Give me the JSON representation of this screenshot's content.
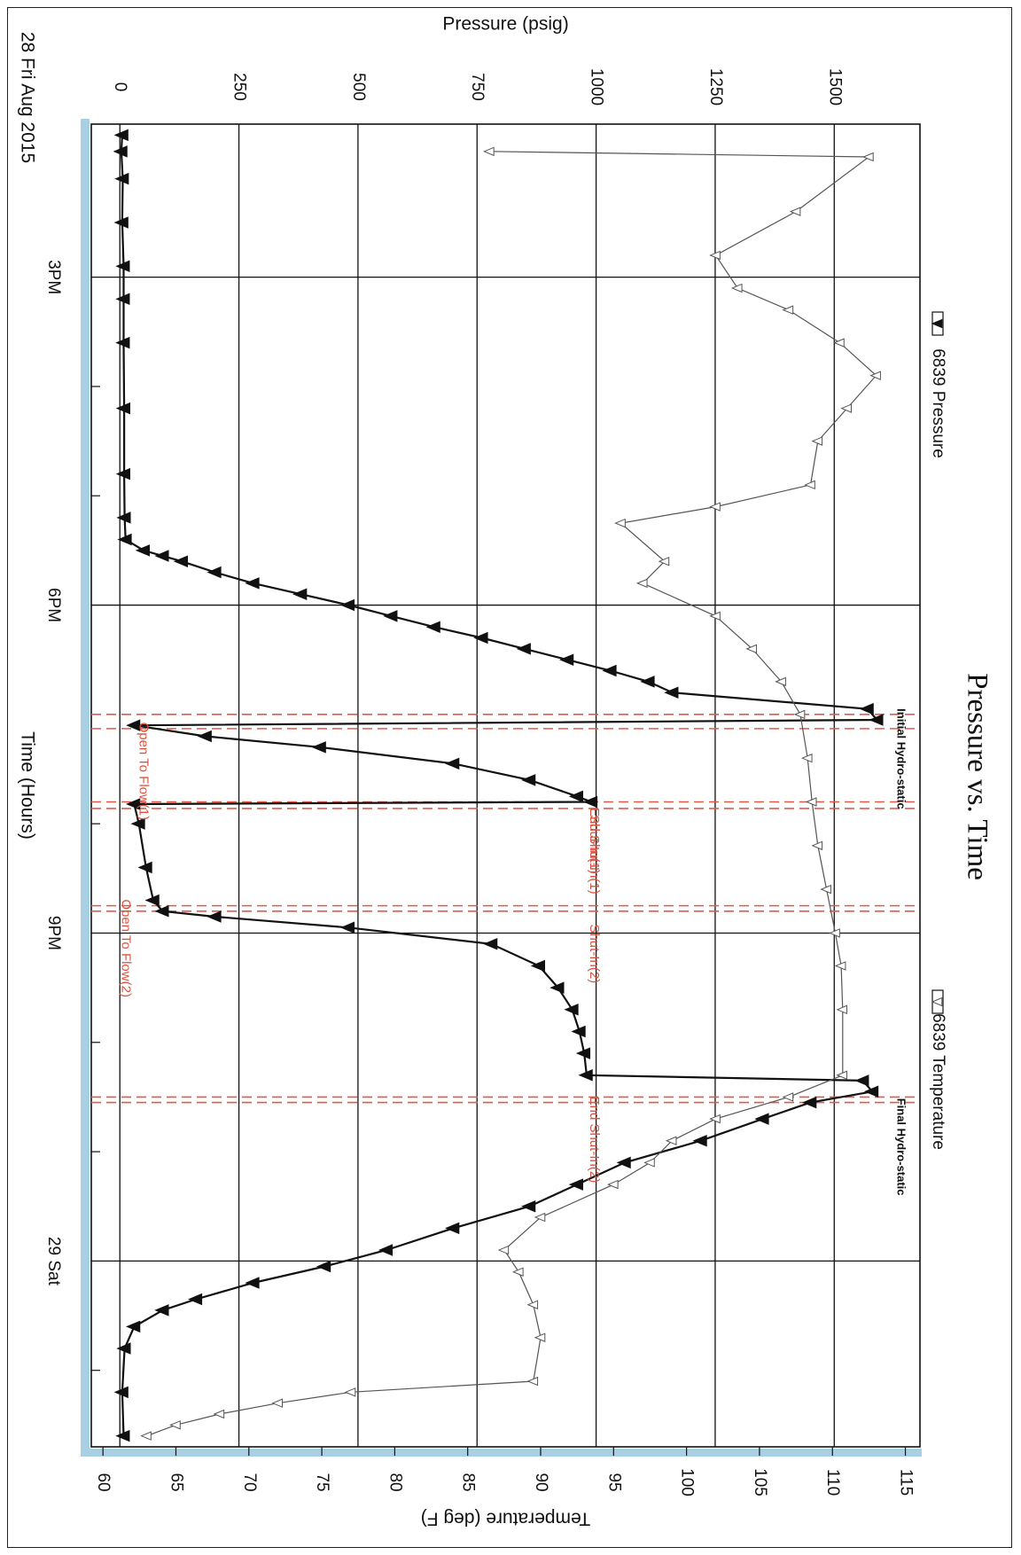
{
  "chart_data": {
    "type": "line",
    "title": "Pressure vs. Time",
    "date_label": "28 Fri Aug 2015",
    "xlabel": "Time (Hours)",
    "ylabel_left": "Pressure (psig)",
    "ylabel_right": "Temperature (deg F)",
    "x_units": "hours since 12PM 28 Aug 2015",
    "xlim": [
      1.6,
      13.7
    ],
    "x_ticks": [
      {
        "x": 3,
        "label": "3PM"
      },
      {
        "x": 6,
        "label": "6PM"
      },
      {
        "x": 9,
        "label": "9PM"
      },
      {
        "x": 12,
        "label": "29 Sat"
      }
    ],
    "x_minor_ticks": [
      4,
      5,
      7,
      8,
      10,
      11,
      13
    ],
    "pressure_axis": {
      "lim": [
        -60,
        1680
      ],
      "ticks": [
        0,
        250,
        500,
        750,
        1000,
        1250,
        1500
      ],
      "tick_labels": [
        "0",
        "250",
        "500",
        "750",
        "1000",
        "1250",
        "1500"
      ]
    },
    "temperature_axis": {
      "lim": [
        59.2,
        116.0
      ],
      "ticks": [
        60,
        65,
        70,
        75,
        80,
        85,
        90,
        95,
        100,
        105,
        110,
        115
      ],
      "tick_labels": [
        "60",
        "65",
        "70",
        "75",
        "80",
        "85",
        "90",
        "95",
        "100",
        "105",
        "110",
        "115"
      ]
    },
    "grid": true,
    "series": [
      {
        "name": "6839 Pressure",
        "marker": "filled-triangle",
        "color": "#111111",
        "points": [
          [
            1.7,
            5
          ],
          [
            1.85,
            3
          ],
          [
            2.1,
            6
          ],
          [
            2.5,
            5
          ],
          [
            2.9,
            8
          ],
          [
            3.2,
            8
          ],
          [
            3.6,
            8
          ],
          [
            4.2,
            9
          ],
          [
            4.8,
            9
          ],
          [
            5.2,
            10
          ],
          [
            5.4,
            12
          ],
          [
            5.5,
            50
          ],
          [
            5.55,
            90
          ],
          [
            5.6,
            130
          ],
          [
            5.7,
            200
          ],
          [
            5.8,
            280
          ],
          [
            5.9,
            380
          ],
          [
            6.0,
            480
          ],
          [
            6.1,
            570
          ],
          [
            6.2,
            660
          ],
          [
            6.3,
            760
          ],
          [
            6.4,
            850
          ],
          [
            6.5,
            940
          ],
          [
            6.6,
            1030
          ],
          [
            6.7,
            1110
          ],
          [
            6.8,
            1160
          ],
          [
            6.95,
            1570
          ],
          [
            7.05,
            1590
          ],
          [
            7.1,
            30
          ],
          [
            7.2,
            180
          ],
          [
            7.3,
            420
          ],
          [
            7.45,
            700
          ],
          [
            7.6,
            860
          ],
          [
            7.75,
            960
          ],
          [
            7.8,
            990
          ],
          [
            7.82,
            30
          ],
          [
            8.0,
            40
          ],
          [
            8.4,
            55
          ],
          [
            8.7,
            70
          ],
          [
            8.8,
            90
          ],
          [
            8.85,
            200
          ],
          [
            8.95,
            480
          ],
          [
            9.1,
            780
          ],
          [
            9.3,
            880
          ],
          [
            9.5,
            920
          ],
          [
            9.7,
            950
          ],
          [
            9.9,
            965
          ],
          [
            10.1,
            975
          ],
          [
            10.3,
            980
          ],
          [
            10.35,
            1560
          ],
          [
            10.45,
            1580
          ],
          [
            10.55,
            1450
          ],
          [
            10.7,
            1350
          ],
          [
            10.9,
            1220
          ],
          [
            11.1,
            1060
          ],
          [
            11.3,
            960
          ],
          [
            11.5,
            860
          ],
          [
            11.7,
            700
          ],
          [
            11.9,
            560
          ],
          [
            12.05,
            430
          ],
          [
            12.2,
            280
          ],
          [
            12.35,
            160
          ],
          [
            12.45,
            90
          ],
          [
            12.6,
            30
          ],
          [
            12.8,
            10
          ],
          [
            13.2,
            5
          ],
          [
            13.6,
            8
          ]
        ]
      },
      {
        "name": "6839 Temperature",
        "marker": "open-triangle",
        "color": "#555555",
        "points": [
          [
            1.85,
            86.5
          ],
          [
            1.9,
            112.5
          ],
          [
            2.4,
            107.5
          ],
          [
            2.8,
            102.0
          ],
          [
            3.1,
            103.5
          ],
          [
            3.3,
            107.0
          ],
          [
            3.6,
            110.5
          ],
          [
            3.9,
            113.0
          ],
          [
            4.2,
            111.0
          ],
          [
            4.5,
            109.0
          ],
          [
            4.9,
            108.5
          ],
          [
            5.1,
            102.0
          ],
          [
            5.25,
            95.5
          ],
          [
            5.6,
            98.5
          ],
          [
            5.8,
            97.0
          ],
          [
            6.1,
            102.0
          ],
          [
            6.4,
            104.5
          ],
          [
            6.7,
            106.5
          ],
          [
            7.0,
            107.8
          ],
          [
            7.4,
            108.3
          ],
          [
            7.8,
            108.6
          ],
          [
            8.2,
            109.0
          ],
          [
            8.6,
            109.6
          ],
          [
            9.0,
            110.2
          ],
          [
            9.3,
            110.6
          ],
          [
            9.7,
            110.7
          ],
          [
            10.3,
            110.7
          ],
          [
            10.5,
            107.0
          ],
          [
            10.7,
            102.0
          ],
          [
            10.9,
            99.0
          ],
          [
            11.1,
            97.5
          ],
          [
            11.3,
            95.0
          ],
          [
            11.6,
            90.0
          ],
          [
            11.9,
            87.5
          ],
          [
            12.1,
            88.5
          ],
          [
            12.4,
            89.5
          ],
          [
            12.7,
            90.0
          ],
          [
            13.1,
            89.5
          ],
          [
            13.2,
            77.0
          ],
          [
            13.3,
            72.0
          ],
          [
            13.4,
            68.0
          ],
          [
            13.5,
            65.0
          ],
          [
            13.6,
            63.0
          ]
        ]
      }
    ],
    "legend": {
      "placement": "right-side",
      "entries": [
        "6839 Pressure",
        "6839 Temperature"
      ]
    },
    "event_lines": [
      {
        "x": 7.0,
        "label": "Initial Hydro-static"
      },
      {
        "x": 7.13,
        "label": "Open To Flow(1)"
      },
      {
        "x": 7.8,
        "label": "Shut-In(1)"
      },
      {
        "x": 7.86,
        "label": "End Shut-In(1)"
      },
      {
        "x": 8.75,
        "label": "Open To Flow(2)"
      },
      {
        "x": 8.8,
        "label": "Shut-In(2)"
      },
      {
        "x": 10.5,
        "label": "End Shut-In(2)"
      },
      {
        "x": 10.55,
        "label": "Final Hydro-static"
      }
    ]
  }
}
